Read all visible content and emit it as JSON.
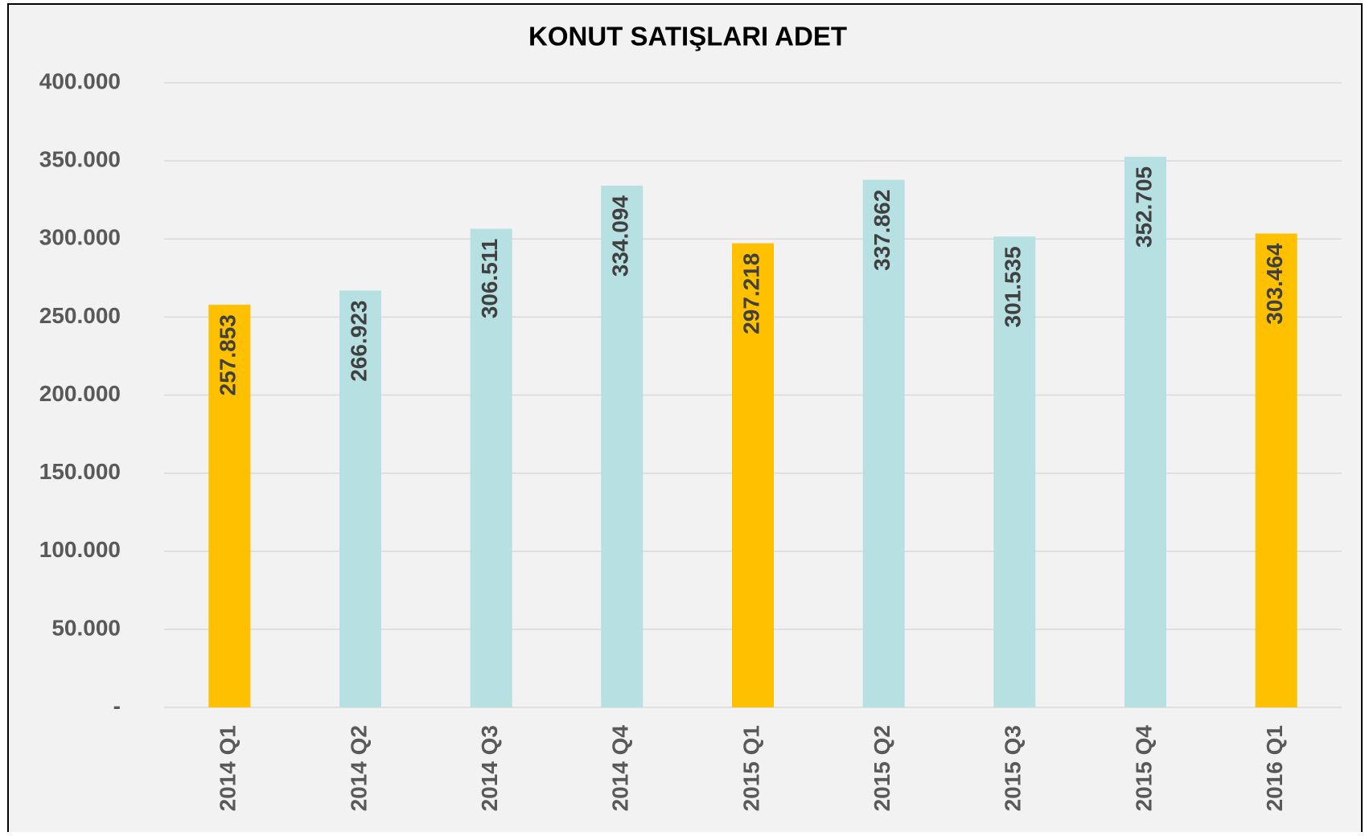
{
  "chart_data": {
    "type": "bar",
    "title": "KONUT SATIŞLARI ADET",
    "categories": [
      "2014 Q1",
      "2014 Q2",
      "2014 Q3",
      "2014 Q4",
      "2015 Q1",
      "2015 Q2",
      "2015 Q3",
      "2015 Q4",
      "2016 Q1"
    ],
    "values": [
      257853,
      266923,
      306511,
      334094,
      297218,
      337862,
      301535,
      352705,
      303464
    ],
    "value_labels": [
      "257.853",
      "266.923",
      "306.511",
      "334.094",
      "297.218",
      "337.862",
      "301.535",
      "352.705",
      "303.464"
    ],
    "colors": [
      "#ffc000",
      "#b7e0e3",
      "#b7e0e3",
      "#b7e0e3",
      "#ffc000",
      "#b7e0e3",
      "#b7e0e3",
      "#b7e0e3",
      "#ffc000"
    ],
    "ylim": [
      0,
      400000
    ],
    "yticks": [
      {
        "value": 0,
        "label": "-"
      },
      {
        "value": 50000,
        "label": "50.000"
      },
      {
        "value": 100000,
        "label": "100.000"
      },
      {
        "value": 150000,
        "label": "150.000"
      },
      {
        "value": 200000,
        "label": "200.000"
      },
      {
        "value": 250000,
        "label": "250.000"
      },
      {
        "value": 300000,
        "label": "300.000"
      },
      {
        "value": 350000,
        "label": "350.000"
      },
      {
        "value": 400000,
        "label": "400.000"
      }
    ],
    "grid": true
  }
}
